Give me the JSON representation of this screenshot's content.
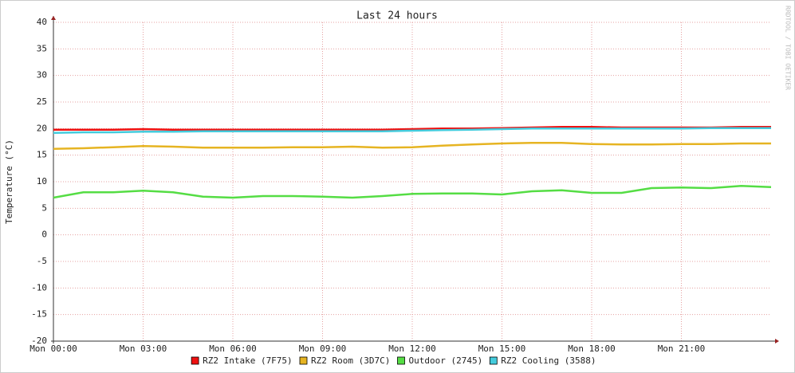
{
  "chart_data": {
    "type": "line",
    "title": "Last 24 hours",
    "y_label": "Temperature (°C)",
    "watermark": "RRDTOOL / TOBI OETIKER",
    "x": [
      0,
      1,
      2,
      3,
      4,
      5,
      6,
      7,
      8,
      9,
      10,
      11,
      12,
      13,
      14,
      15,
      16,
      17,
      18,
      19,
      20,
      21,
      22,
      23,
      24
    ],
    "xlim": [
      0,
      24
    ],
    "xticks": [
      {
        "value": 0,
        "label": "Mon 00:00"
      },
      {
        "value": 3,
        "label": "Mon 03:00"
      },
      {
        "value": 6,
        "label": "Mon 06:00"
      },
      {
        "value": 9,
        "label": "Mon 09:00"
      },
      {
        "value": 12,
        "label": "Mon 12:00"
      },
      {
        "value": 15,
        "label": "Mon 15:00"
      },
      {
        "value": 18,
        "label": "Mon 18:00"
      },
      {
        "value": 21,
        "label": "Mon 21:00"
      }
    ],
    "ylim": [
      -20,
      40
    ],
    "yticks": [
      -20,
      -15,
      -10,
      -5,
      0,
      5,
      10,
      15,
      20,
      25,
      30,
      35,
      40
    ],
    "grid": true,
    "series": [
      {
        "name": "RZ2 Intake (7F75)",
        "color": "#ee1111",
        "values": [
          19.8,
          19.8,
          19.8,
          19.9,
          19.8,
          19.8,
          19.8,
          19.8,
          19.8,
          19.8,
          19.8,
          19.8,
          19.9,
          20.0,
          20.0,
          20.1,
          20.2,
          20.3,
          20.3,
          20.2,
          20.2,
          20.2,
          20.2,
          20.3,
          20.3
        ]
      },
      {
        "name": "RZ2 Room (3D7C)",
        "color": "#e6b422",
        "values": [
          16.2,
          16.3,
          16.5,
          16.7,
          16.6,
          16.4,
          16.4,
          16.4,
          16.5,
          16.5,
          16.6,
          16.4,
          16.5,
          16.8,
          17.0,
          17.2,
          17.3,
          17.3,
          17.1,
          17.0,
          17.0,
          17.1,
          17.1,
          17.2,
          17.2
        ]
      },
      {
        "name": "Outdoor (2745)",
        "color": "#55dd44",
        "values": [
          7.0,
          8.0,
          8.0,
          8.3,
          8.0,
          7.2,
          7.0,
          7.3,
          7.3,
          7.2,
          7.0,
          7.3,
          7.7,
          7.8,
          7.8,
          7.6,
          8.2,
          8.4,
          7.9,
          7.9,
          8.8,
          8.9,
          8.8,
          9.2,
          9.0
        ]
      },
      {
        "name": "RZ2 Cooling (3588)",
        "color": "#44ccdd",
        "values": [
          19.2,
          19.3,
          19.3,
          19.4,
          19.4,
          19.5,
          19.5,
          19.5,
          19.5,
          19.5,
          19.5,
          19.5,
          19.6,
          19.7,
          19.8,
          19.9,
          20.0,
          20.0,
          20.0,
          20.0,
          20.0,
          20.0,
          20.1,
          20.1,
          20.1
        ]
      }
    ]
  }
}
